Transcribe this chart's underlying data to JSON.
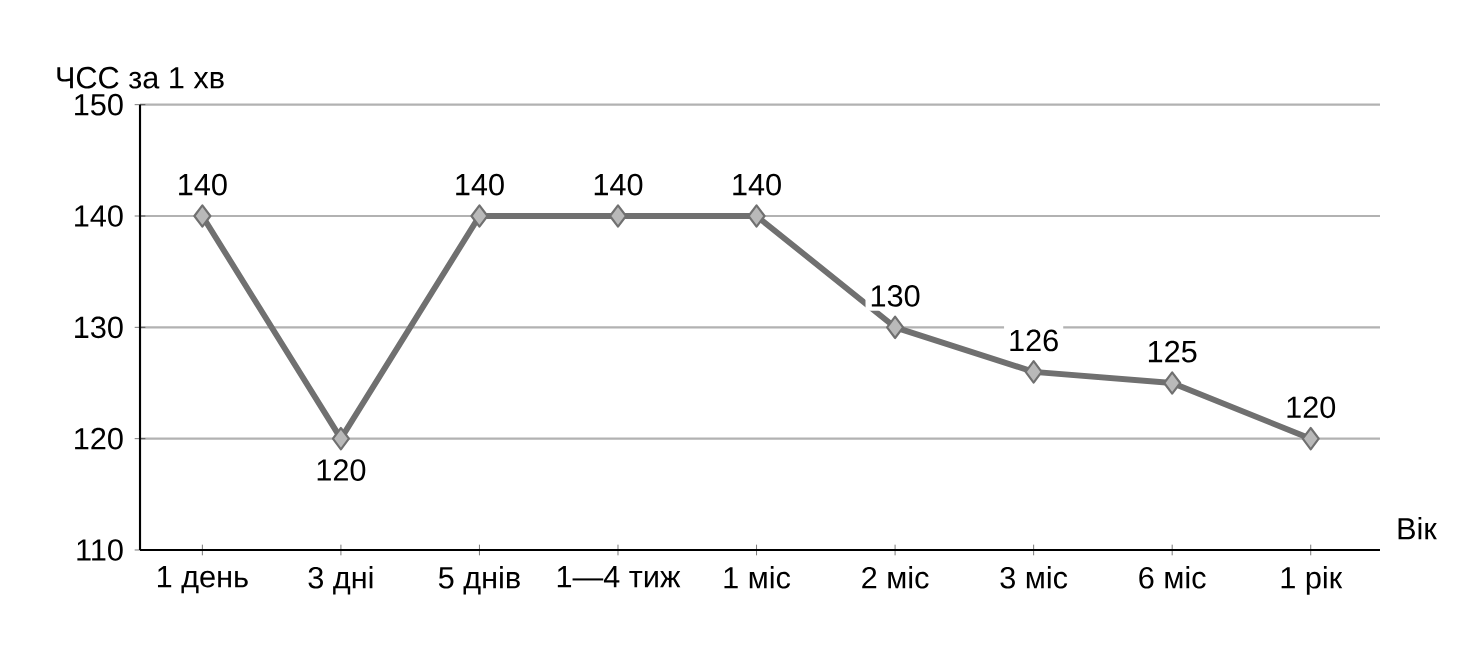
{
  "chart_data": {
    "type": "line",
    "ylabel": "ЧСС за 1 хв",
    "xlabel": "Вік",
    "categories": [
      "1 день",
      "3 дні",
      "5 днів",
      "1—4 тиж",
      "1 міс",
      "2 міс",
      "3 міс",
      "6 міс",
      "1 рік"
    ],
    "values": [
      140,
      120,
      140,
      140,
      140,
      130,
      126,
      125,
      120
    ],
    "color": "#707070",
    "ylim": [
      110,
      150
    ],
    "yticks": [
      110,
      120,
      130,
      140,
      150
    ],
    "grid": "y",
    "marker": "diamond",
    "line_style": "solid",
    "data_labels": true
  }
}
